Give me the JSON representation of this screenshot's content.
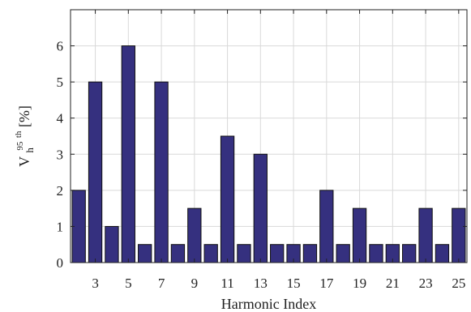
{
  "chart_data": {
    "type": "bar",
    "title": "",
    "xlabel": "Harmonic Index",
    "ylabel": {
      "main": "V",
      "superscript": "95",
      "superscript_suffix": "th",
      "subscript": "h",
      "unit": " [%]"
    },
    "x": [
      2,
      3,
      4,
      5,
      6,
      7,
      8,
      9,
      10,
      11,
      12,
      13,
      14,
      15,
      16,
      17,
      18,
      19,
      20,
      21,
      22,
      23,
      24,
      25
    ],
    "values": [
      2,
      5,
      1,
      6,
      0.5,
      5,
      0.5,
      1.5,
      0.5,
      3.5,
      0.5,
      3,
      0.5,
      0.5,
      0.5,
      2,
      0.5,
      1.5,
      0.5,
      0.5,
      0.5,
      1.5,
      0.5,
      1.5
    ],
    "xlim": [
      1.5,
      25.5
    ],
    "ylim": [
      0,
      7
    ],
    "xticks": [
      "3",
      "5",
      "7",
      "9",
      "11",
      "13",
      "15",
      "17",
      "19",
      "21",
      "23",
      "25"
    ],
    "yticks": [
      "0",
      "1",
      "2",
      "3",
      "4",
      "5",
      "6"
    ],
    "grid": true,
    "bar_color": "#35307f"
  }
}
